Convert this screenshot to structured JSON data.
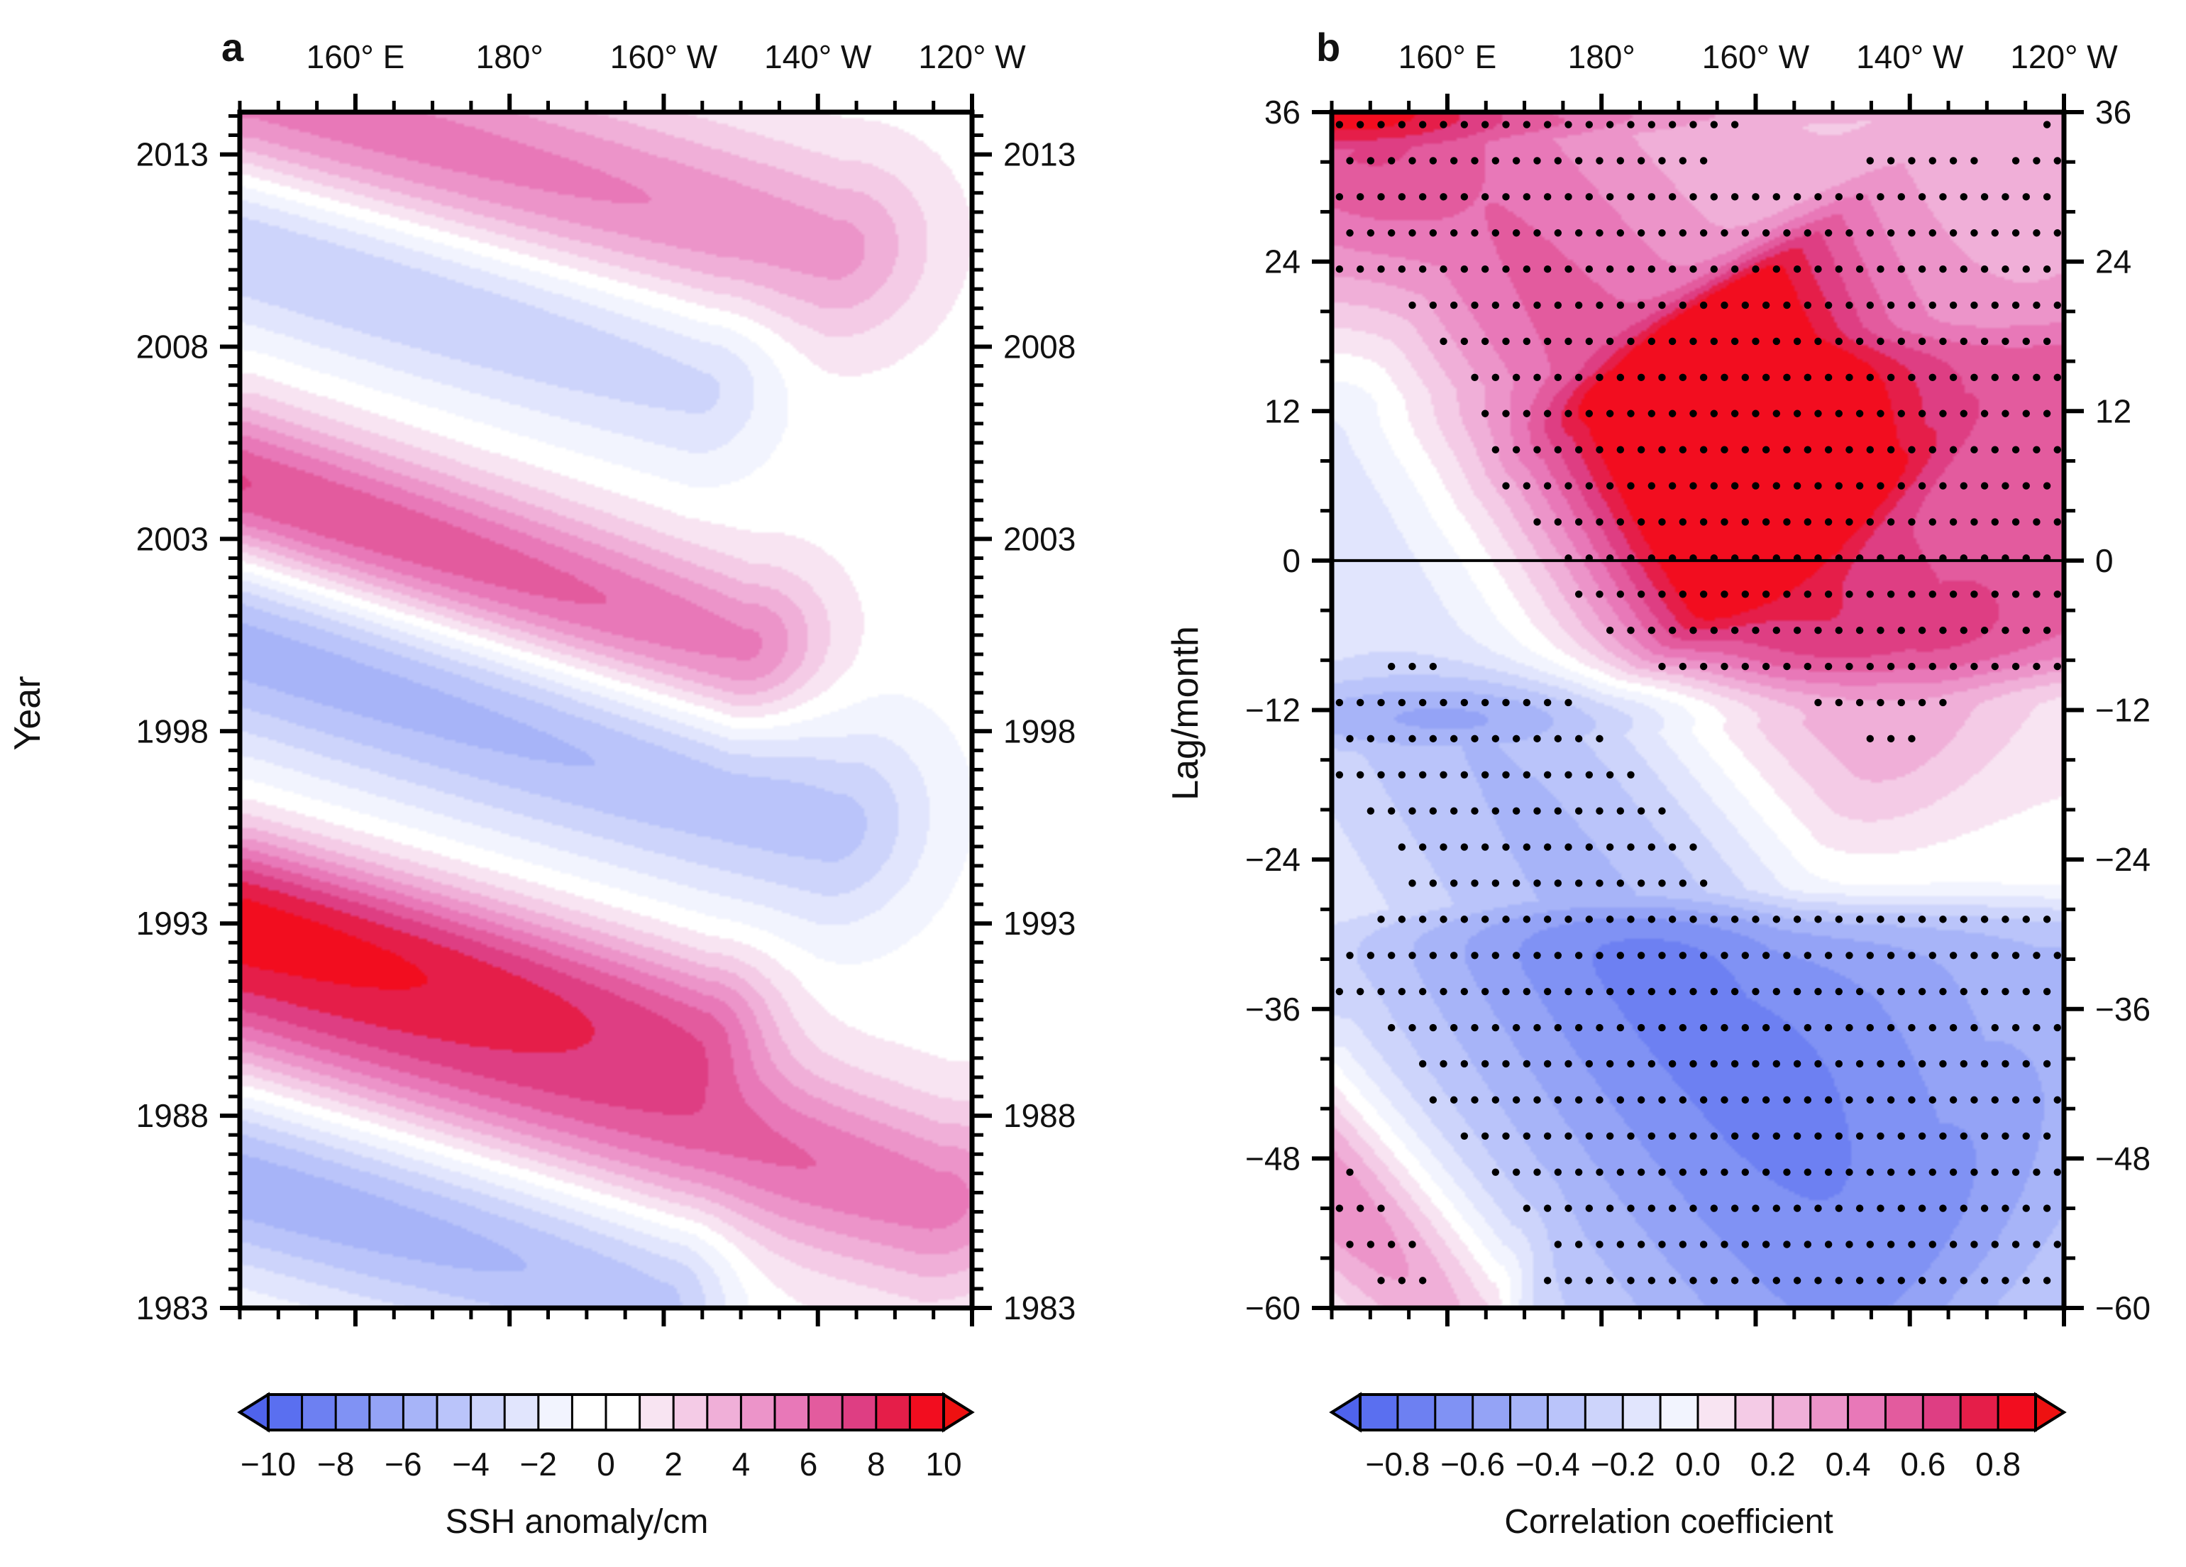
{
  "chart_data": [
    {
      "id": "a",
      "type": "heatmap",
      "panel_letter": "a",
      "title": "",
      "xlabel": "",
      "ylabel": "Year",
      "x_tick_labels": [
        "160° E",
        "180°",
        "160° W",
        "140° W",
        "120° W"
      ],
      "x_tick_values": [
        160,
        180,
        200,
        220,
        240
      ],
      "xlim": [
        145,
        240
      ],
      "y_tick_labels": [
        "2013",
        "2008",
        "2003",
        "1998",
        "1993",
        "1988",
        "1983"
      ],
      "y_tick_values": [
        2013,
        2008,
        2003,
        1998,
        1993,
        1988,
        1983
      ],
      "ylim": [
        1983,
        2014.1
      ],
      "colorbar": {
        "title": "SSH anomaly/cm",
        "levels": [
          -10,
          -9,
          -8,
          -7,
          -6,
          -5,
          -4,
          -3,
          -2,
          -1,
          0,
          1,
          2,
          3,
          4,
          5,
          6,
          7,
          8,
          9,
          10
        ],
        "tick_values": [
          -10,
          -8,
          -6,
          -4,
          -2,
          0,
          2,
          4,
          6,
          8,
          10
        ],
        "tick_labels": [
          "−10",
          "−8",
          "−6",
          "−4",
          "−2",
          "0",
          "2",
          "4",
          "6",
          "8",
          "10"
        ],
        "extend": "both"
      },
      "features": [
        {
          "name": "positive band",
          "value": 5.5,
          "start": [
            145,
            2014.5
          ],
          "end": [
            222,
            2010.5
          ],
          "spread": 1.7
        },
        {
          "name": "negative band",
          "value": -4.0,
          "start": [
            145,
            2010.8
          ],
          "end": [
            205,
            2007.0
          ],
          "spread": 1.6
        },
        {
          "name": "positive band",
          "value": 7.5,
          "start": [
            145,
            2004.3
          ],
          "end": [
            210,
            2000.0
          ],
          "spread": 1.5
        },
        {
          "name": "negative band",
          "value": -5.5,
          "start": [
            145,
            2000.4
          ],
          "end": [
            222,
            1995.5
          ],
          "spread": 1.9
        },
        {
          "name": "positive band",
          "value": 6.0,
          "start": [
            145,
            1993.8
          ],
          "end": [
            205,
            1990.5
          ],
          "spread": 1.3
        },
        {
          "name": "positive band",
          "value": 7.0,
          "start": [
            145,
            1991.4
          ],
          "end": [
            235,
            1985.8
          ],
          "spread": 1.7
        },
        {
          "name": "negative band",
          "value": -5.5,
          "start": [
            145,
            1986.3
          ],
          "end": [
            200,
            1983.2
          ],
          "spread": 1.7
        }
      ]
    },
    {
      "id": "b",
      "type": "heatmap",
      "panel_letter": "b",
      "title": "",
      "xlabel": "",
      "ylabel": "Lag/month",
      "x_tick_labels": [
        "160° E",
        "180°",
        "160° W",
        "140° W",
        "120° W"
      ],
      "x_tick_values": [
        160,
        180,
        200,
        220,
        240
      ],
      "xlim": [
        145,
        240
      ],
      "y_tick_labels": [
        "36",
        "24",
        "12",
        "0",
        "−12",
        "−24",
        "−36",
        "−48",
        "−60"
      ],
      "y_tick_values": [
        36,
        24,
        12,
        0,
        -12,
        -24,
        -36,
        -48,
        -60
      ],
      "ylim": [
        -60,
        36
      ],
      "reference_line_y": 0,
      "stippling": "dots mark statistically significant correlations",
      "colorbar": {
        "title": "Correlation coefficient",
        "levels": [
          -0.9,
          -0.8,
          -0.7,
          -0.6,
          -0.5,
          -0.4,
          -0.3,
          -0.2,
          -0.1,
          0.0,
          0.1,
          0.2,
          0.3,
          0.4,
          0.5,
          0.6,
          0.7,
          0.8,
          0.9
        ],
        "tick_values": [
          -0.8,
          -0.6,
          -0.4,
          -0.2,
          0.0,
          0.2,
          0.4,
          0.6,
          0.8
        ],
        "tick_labels": [
          "−0.8",
          "−0.6",
          "−0.4",
          "−0.2",
          "0.0",
          "0.2",
          "0.4",
          "0.6",
          "0.8"
        ],
        "extend": "both"
      },
      "features": [
        {
          "name": "positive band",
          "value": 0.45,
          "start": [
            145,
            38
          ],
          "end": [
            214,
            -15
          ],
          "spread": 10
        },
        {
          "name": "positive core",
          "value": 0.6,
          "start": [
            196,
            20
          ],
          "end": [
            205,
            2
          ],
          "spread": 6
        },
        {
          "name": "negative band",
          "value": -0.5,
          "start": [
            145,
            8
          ],
          "end": [
            214,
            -56
          ],
          "spread": 13
        },
        {
          "name": "positive corner",
          "value": 0.6,
          "start": [
            141,
            -48
          ],
          "end": [
            163,
            -62
          ],
          "spread": 5
        },
        {
          "name": "east positive",
          "value": 0.55,
          "start": [
            238,
            36
          ],
          "end": [
            240,
            -25
          ],
          "spread": 2.5
        },
        {
          "name": "east negative",
          "value": -0.4,
          "start": [
            231,
            -12
          ],
          "end": [
            233,
            -60
          ],
          "spread": 3
        },
        {
          "name": "upper negative",
          "value": -0.3,
          "start": [
            222,
            40
          ],
          "end": [
            224,
            20
          ],
          "spread": 4
        }
      ]
    }
  ],
  "colors": {
    "neg": [
      "#5a6ff0",
      "#6d80f2",
      "#8092f4",
      "#94a3f6",
      "#a7b4f8",
      "#bac4fa",
      "#cdd4fb",
      "#e1e5fd",
      "#f2f4fe",
      "#ffffff"
    ],
    "pos": [
      "#ffffff",
      "#f8e4f2",
      "#f4cbe6",
      "#f0afd8",
      "#ec94c9",
      "#e878b8",
      "#e35b9e",
      "#de3e83",
      "#e51e49",
      "#f20d1f"
    ],
    "extend_low": "#4f63ec",
    "extend_high": "#ee1111",
    "frame": "#000000"
  }
}
